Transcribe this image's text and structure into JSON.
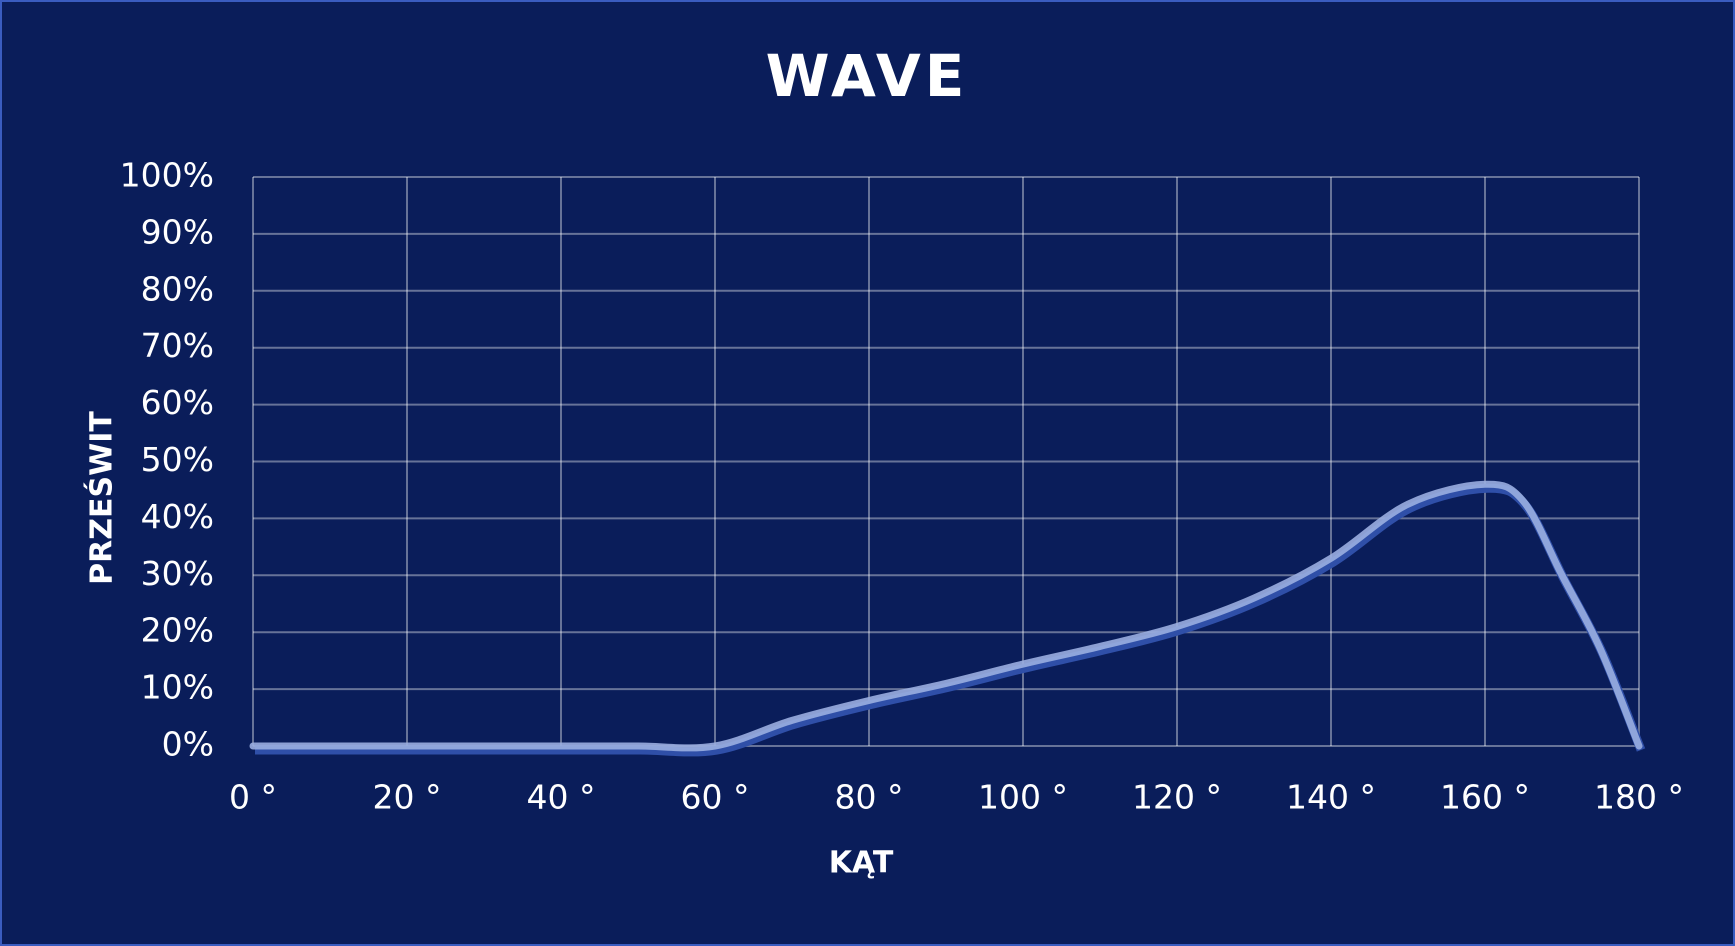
{
  "chart_data": {
    "type": "line",
    "title": "WAVE",
    "x_label": "KĄT",
    "y_label": "PRZEŚWIT",
    "x": [
      0,
      10,
      20,
      30,
      40,
      50,
      60,
      70,
      80,
      90,
      100,
      110,
      120,
      130,
      140,
      150,
      160,
      165,
      170,
      175,
      180
    ],
    "series": [
      {
        "name": "WAVE",
        "color": "#9aaee0",
        "values": [
          0,
          0,
          0,
          0,
          0,
          0,
          0,
          4.5,
          8,
          11,
          14.4,
          17.5,
          21,
          26,
          33,
          42.5,
          46,
          43,
          30,
          17,
          0
        ]
      }
    ],
    "xlim": [
      0,
      180
    ],
    "xticks": [
      {
        "value": 0,
        "label": "0 °"
      },
      {
        "value": 20,
        "label": "20 °"
      },
      {
        "value": 40,
        "label": "40 °"
      },
      {
        "value": 60,
        "label": "60 °"
      },
      {
        "value": 80,
        "label": "80 °"
      },
      {
        "value": 100,
        "label": "100 °"
      },
      {
        "value": 120,
        "label": "120 °"
      },
      {
        "value": 140,
        "label": "140 °"
      },
      {
        "value": 160,
        "label": "160 °"
      },
      {
        "value": 180,
        "label": "180 °"
      }
    ],
    "ylim": [
      0,
      100
    ],
    "yticks": [
      {
        "value": 0,
        "label": "0%"
      },
      {
        "value": 10,
        "label": "10%"
      },
      {
        "value": 20,
        "label": "20%"
      },
      {
        "value": 30,
        "label": "30%"
      },
      {
        "value": 40,
        "label": "40%"
      },
      {
        "value": 50,
        "label": "50%"
      },
      {
        "value": 60,
        "label": "60%"
      },
      {
        "value": 70,
        "label": "70%"
      },
      {
        "value": 80,
        "label": "80%"
      },
      {
        "value": 90,
        "label": "90%"
      },
      {
        "value": 100,
        "label": "100%"
      }
    ],
    "grid": true
  }
}
